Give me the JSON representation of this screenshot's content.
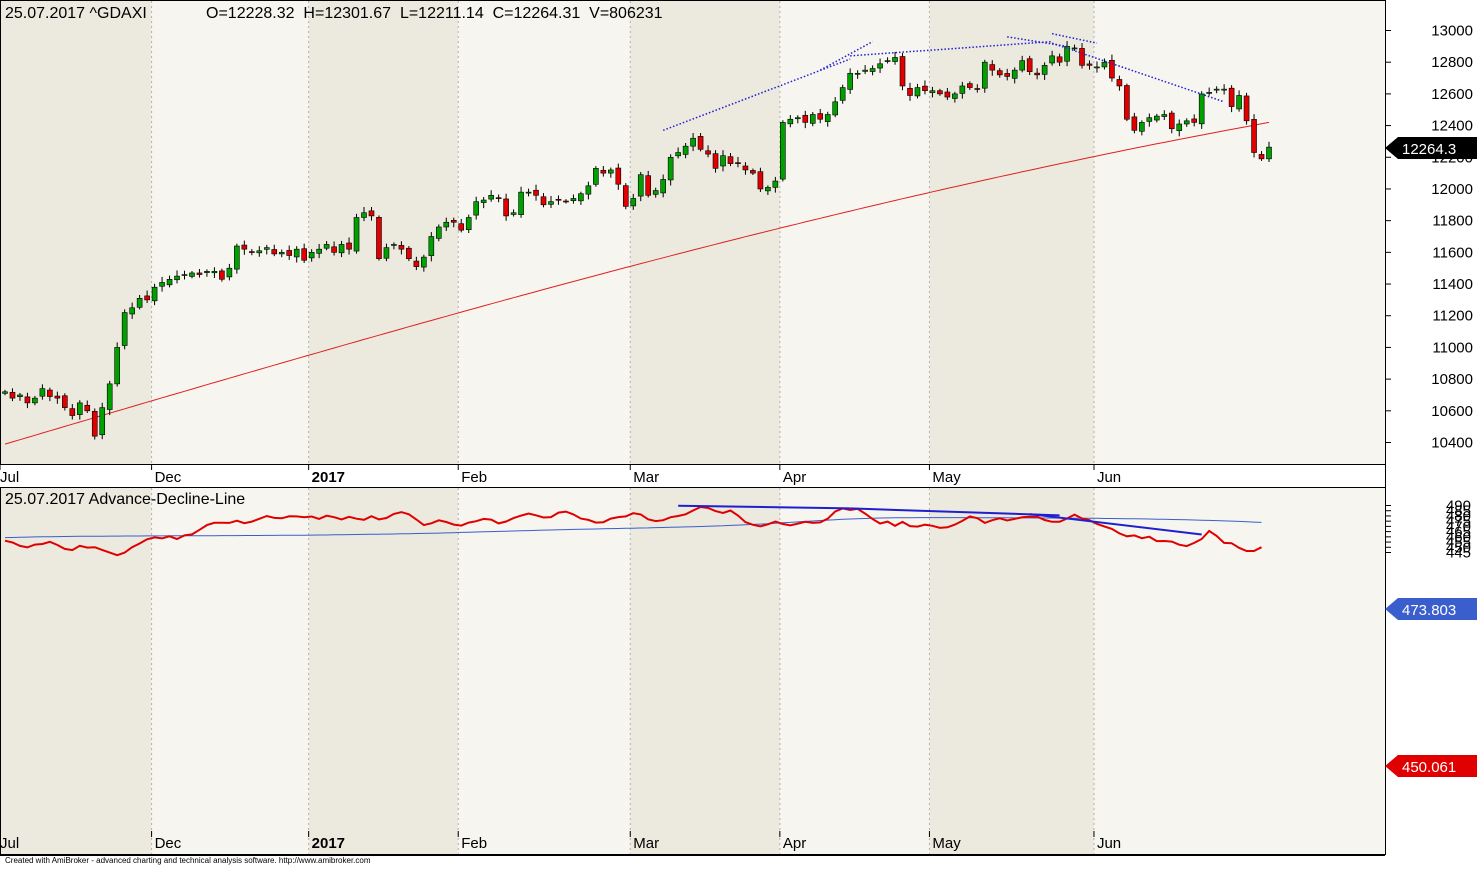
{
  "colors": {
    "up_candle": "#00a000",
    "down_candle": "#e00000",
    "ma_price": "#e02020",
    "trendline": "#1f1fd0",
    "ad_line": "#e00000",
    "ad_ma": "#3a5fcd",
    "band_shade": "#ece9df",
    "band_light": "#f6f5ef"
  },
  "footer": "Created with AmiBroker - advanced charting and technical analysis software. http://www.amibroker.com",
  "chart_data": [
    {
      "type": "candlestick",
      "title": "25.07.2017 ^GDAXI",
      "ohlcv_label": "O=12228.32  H=12301.67  L=12211.14  C=12264.31  V=806231",
      "last_value_label": "12264.3",
      "ylim": [
        10300,
        13150
      ],
      "yticks": [
        10400,
        10600,
        10800,
        11000,
        11200,
        11400,
        11600,
        11800,
        12000,
        12200,
        12400,
        12600,
        12800,
        13000
      ],
      "month_labels": [
        "Dec",
        "2017",
        "Feb",
        "Mar",
        "Apr",
        "May",
        "Jun",
        "Jul"
      ],
      "closes": [
        10720,
        10680,
        10700,
        10650,
        10680,
        10740,
        10690,
        10680,
        10620,
        10570,
        10650,
        10600,
        10440,
        10620,
        10770,
        11000,
        11220,
        11250,
        11310,
        11300,
        11380,
        11410,
        11430,
        11450,
        11460,
        11470,
        11460,
        11480,
        11480,
        11430,
        11500,
        11640,
        11620,
        11600,
        11610,
        11630,
        11590,
        11600,
        11580,
        11620,
        11550,
        11600,
        11620,
        11650,
        11600,
        11650,
        11620,
        11820,
        11850,
        11830,
        11560,
        11630,
        11650,
        11620,
        11560,
        11510,
        11570,
        11700,
        11760,
        11790,
        11790,
        11740,
        11820,
        11920,
        11930,
        11960,
        11940,
        11830,
        11850,
        11980,
        11980,
        11960,
        11900,
        11920,
        11930,
        11920,
        11940,
        11970,
        12020,
        12130,
        12100,
        12120,
        12030,
        11890,
        11940,
        12090,
        11960,
        11990,
        12060,
        12200,
        12230,
        12270,
        12320,
        12250,
        12220,
        12130,
        12210,
        12160,
        12160,
        12120,
        12100,
        12000,
        12010,
        12050,
        12420,
        12440,
        12450,
        12420,
        12470,
        12440,
        12470,
        12550,
        12640,
        12730,
        12730,
        12750,
        12760,
        12790,
        12810,
        12830,
        12650,
        12590,
        12640,
        12620,
        12620,
        12600,
        12580,
        12600,
        12650,
        12640,
        12630,
        12800,
        12750,
        12720,
        12710,
        12750,
        12810,
        12740,
        12720,
        12780,
        12840,
        12800,
        12900,
        12890,
        12780,
        12780,
        12770,
        12800,
        12700,
        12650,
        12440,
        12370,
        12420,
        12450,
        12460,
        12470,
        12380,
        12410,
        12430,
        12420,
        12600,
        12610,
        12630,
        12630,
        12520,
        12590,
        12430,
        12230,
        12190,
        12264
      ]
    },
    {
      "type": "line",
      "title": "25.07.2017 Advance-Decline-Line",
      "last_value_label": "450.061",
      "ma_value_label": "473.803",
      "ylim": [
        441.5,
        491.5
      ],
      "yticks": [
        445,
        450,
        455,
        460,
        465,
        470,
        475,
        480,
        485,
        490
      ],
      "month_labels": [
        "Dec",
        "2017",
        "Feb",
        "Mar",
        "Apr",
        "May",
        "Jun",
        "Jul"
      ],
      "series": [
        {
          "values": [
            456.3,
            454.6,
            451.3,
            449.9,
            452.6,
            453.1,
            455.2,
            452.2,
            448.4,
            447.3,
            451.4,
            449.7,
            450.1,
            447.5,
            444.9,
            442.4,
            444.9,
            450.1,
            453.6,
            457.6,
            459.5,
            458.5,
            460.5,
            457.9,
            461.4,
            462.3,
            466.7,
            471.2,
            473.4,
            473.5,
            473.3,
            475.4,
            473.1,
            474.6,
            477.3,
            479.9,
            478.1,
            477.7,
            479.7,
            479.6,
            478.8,
            479.5,
            477.2,
            480.2,
            478.8,
            476.6,
            479.2,
            477.4,
            476.3,
            479.8,
            476.7,
            478.0,
            482.0,
            483.7,
            481.6,
            476.6,
            471.2,
            473.0,
            475.8,
            474.2,
            471.7,
            470.8,
            473.6,
            475.0,
            477.2,
            476.5,
            472.9,
            474.7,
            477.9,
            480.3,
            482.3,
            480.6,
            478.5,
            478.9,
            483.2,
            484.2,
            481.5,
            477.5,
            476.2,
            473.6,
            474.0,
            477.5,
            478.9,
            479.6,
            482.6,
            481.5,
            476.8,
            475.1,
            475.9,
            478.8,
            479.9,
            481.6,
            485.2,
            488.6,
            487.6,
            484.6,
            482.8,
            485.2,
            480.4,
            474.1,
            471.5,
            470.0,
            472.0,
            474.6,
            472.3,
            471.0,
            472.7,
            474.4,
            473.3,
            473.8,
            477.4,
            484.3,
            487.2,
            485.7,
            486.8,
            482.2,
            477.0,
            472.8,
            474.6,
            470.6,
            474.3,
            470.3,
            469.8,
            471.6,
            470.6,
            468.6,
            469.1,
            471.7,
            475.3,
            479.5,
            477.8,
            473.3,
            475.9,
            477.7,
            475.6,
            477.2,
            478.7,
            479.3,
            479.4,
            476.1,
            474.4,
            474.5,
            477.6,
            481.3,
            477.6,
            475.9,
            472.3,
            469.9,
            467.6,
            463.3,
            460.5,
            461.4,
            458.7,
            460.1,
            455.9,
            456.0,
            455.4,
            452.5,
            451.1,
            454.2,
            457.9,
            465.7,
            460.9,
            454.2,
            453.9,
            449.5,
            446.4,
            446.4,
            450.1
          ]
        },
        {
          "values": [
            459.3,
            459.4,
            459.6,
            459.7,
            459.9,
            460.0,
            460.1,
            460.2,
            460.3,
            460.4,
            460.5,
            460.5,
            460.6,
            460.6,
            460.7,
            460.7,
            460.8,
            460.8,
            460.8,
            460.9,
            460.9,
            460.9,
            461.0,
            461.0,
            461.0,
            461.0,
            461.1,
            461.1,
            461.1,
            461.2,
            461.2,
            461.2,
            461.3,
            461.3,
            461.3,
            461.4,
            461.4,
            461.5,
            461.5,
            461.6,
            461.6,
            461.7,
            461.8,
            461.8,
            461.9,
            462.0,
            462.1,
            462.2,
            462.3,
            462.4,
            462.5,
            462.6,
            462.7,
            462.9,
            463.0,
            463.2,
            463.3,
            463.5,
            463.6,
            463.8,
            464.0,
            464.2,
            464.4,
            464.6,
            464.8,
            465.0,
            465.2,
            465.4,
            465.6,
            465.8,
            466.0,
            466.2,
            466.4,
            466.5,
            466.7,
            466.9,
            467.1,
            467.2,
            467.4,
            467.5,
            467.7,
            467.9,
            468.0,
            468.2,
            468.3,
            468.5,
            468.6,
            468.8,
            468.9,
            469.1,
            469.3,
            469.5,
            469.7,
            469.9,
            470.1,
            470.4,
            470.6,
            470.9,
            471.2,
            471.5,
            471.9,
            472.2,
            472.6,
            473.0,
            473.4,
            473.8,
            474.3,
            474.8,
            475.2,
            475.6,
            476.0,
            476.4,
            476.8,
            477.1,
            477.4,
            477.6,
            477.8,
            478.0,
            478.1,
            478.2,
            478.3,
            478.3,
            478.4,
            478.4,
            478.4,
            478.4,
            478.4,
            478.4,
            478.4,
            478.3,
            478.3,
            478.3,
            478.2,
            478.2,
            478.2,
            478.1,
            478.1,
            478.1,
            478.0,
            478.0,
            478.0,
            477.9,
            477.9,
            477.8,
            477.8,
            477.7,
            477.7,
            477.6,
            477.6,
            477.5,
            477.4,
            477.3,
            477.2,
            477.1,
            476.9,
            476.8,
            476.6,
            476.5,
            476.3,
            476.1,
            475.9,
            475.7,
            475.5,
            475.3,
            475.1,
            474.8,
            474.5,
            474.1,
            473.8
          ]
        }
      ]
    }
  ]
}
